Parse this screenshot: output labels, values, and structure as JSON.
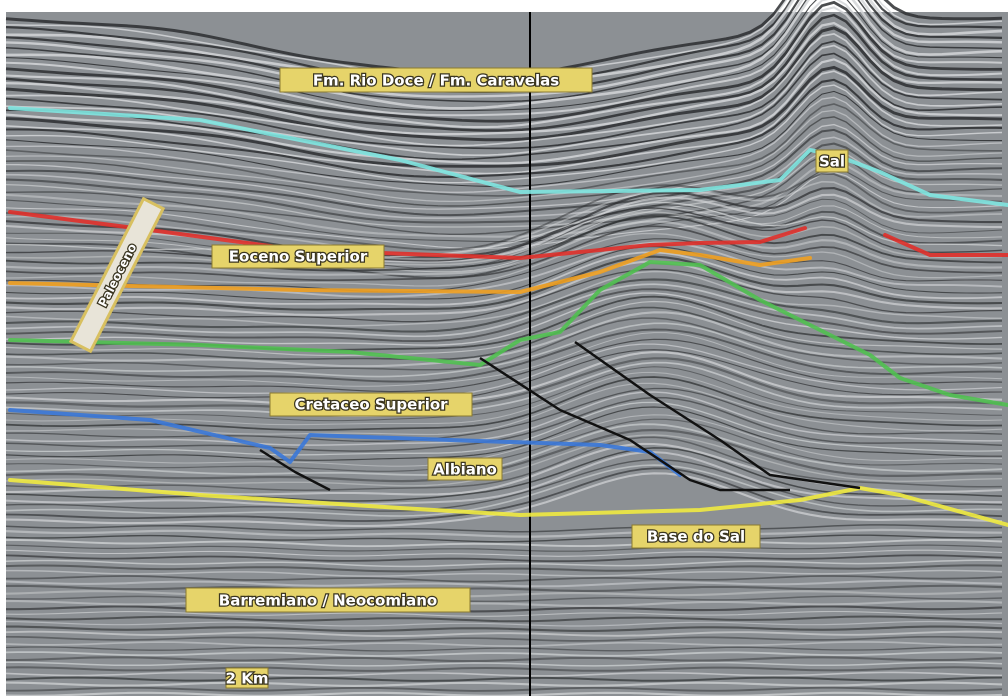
{
  "labels": {
    "formation_top": "Fm. Rio Doce / Fm. Caravelas",
    "salt": "Sal",
    "eocene_upper": "Eoceno Superior",
    "rotated": "Paleoceno",
    "cretaceous_upper": "Cretaceo Superior",
    "albian": "Albiano",
    "salt_base": "Base do Sal",
    "barremian": "Barremiano / Neocomiano",
    "scale_bar": "2 Km"
  }
}
